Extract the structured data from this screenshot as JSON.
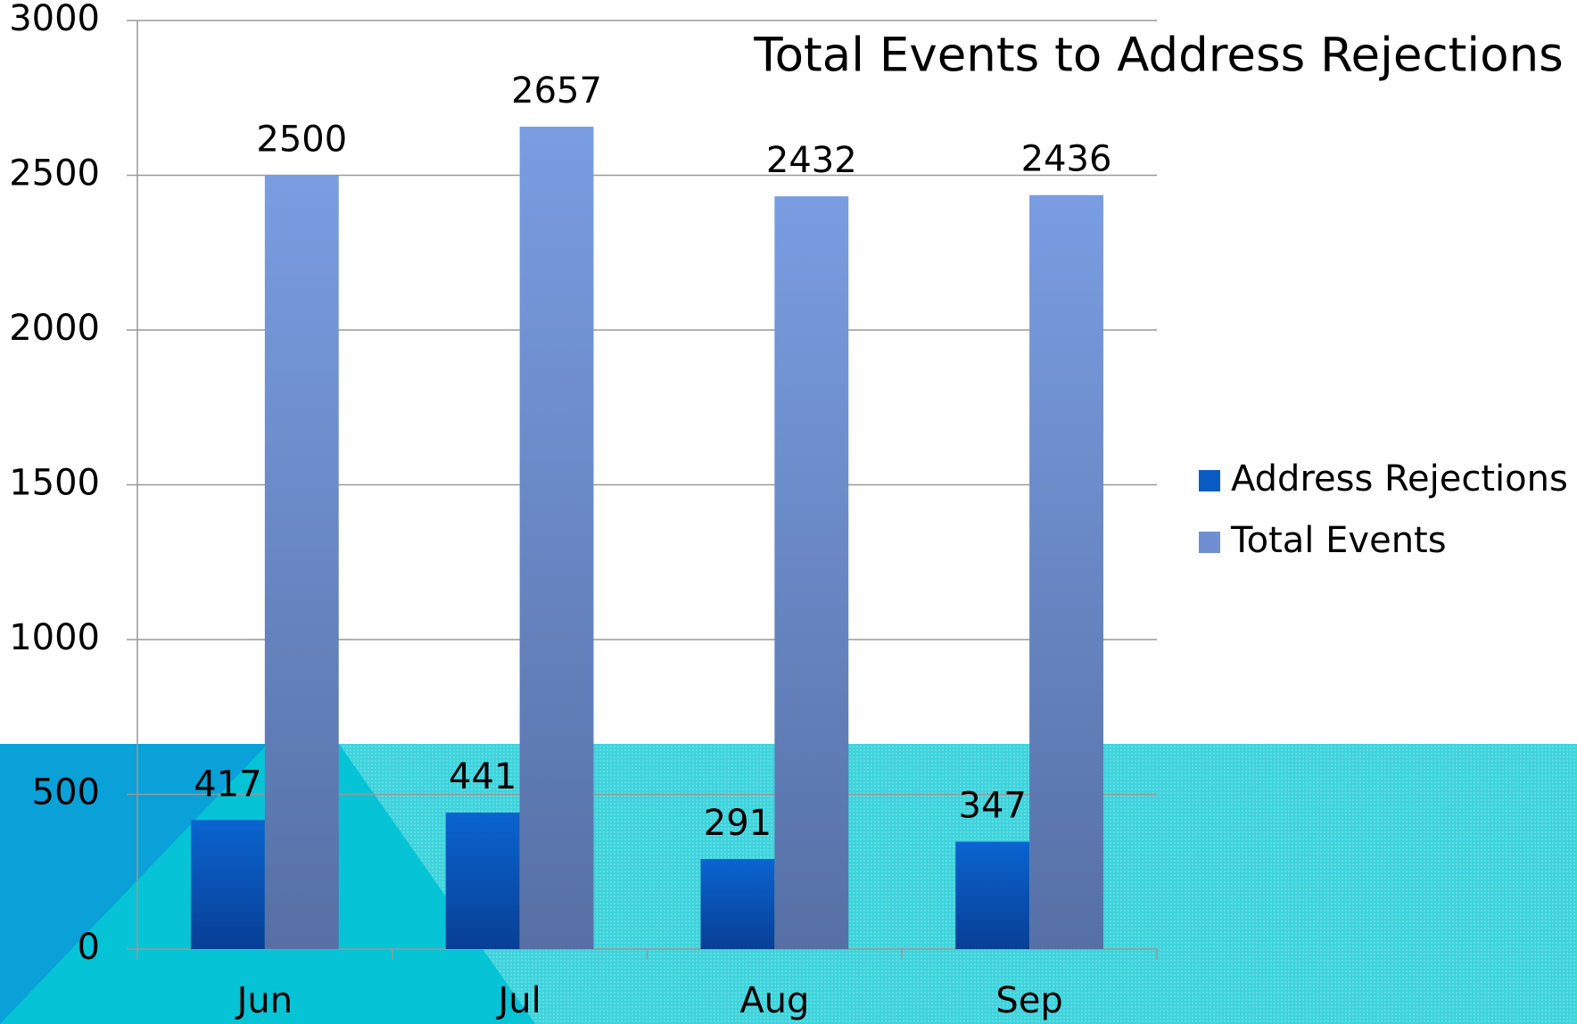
{
  "chart_data": {
    "type": "bar",
    "title": "Total Events to Address Rejections",
    "categories": [
      "Jun",
      "Jul",
      "Aug",
      "Sep"
    ],
    "series": [
      {
        "name": "Address Rejections",
        "color": "#0a5cc2",
        "values": [
          417,
          441,
          291,
          347
        ]
      },
      {
        "name": "Total Events",
        "color": "#6f8fd2",
        "values": [
          2500,
          2657,
          2432,
          2436
        ]
      }
    ],
    "ylim": [
      0,
      3000
    ],
    "yticks": [
      0,
      500,
      1000,
      1500,
      2000,
      2500,
      3000
    ],
    "grid": true,
    "legend": "right"
  }
}
